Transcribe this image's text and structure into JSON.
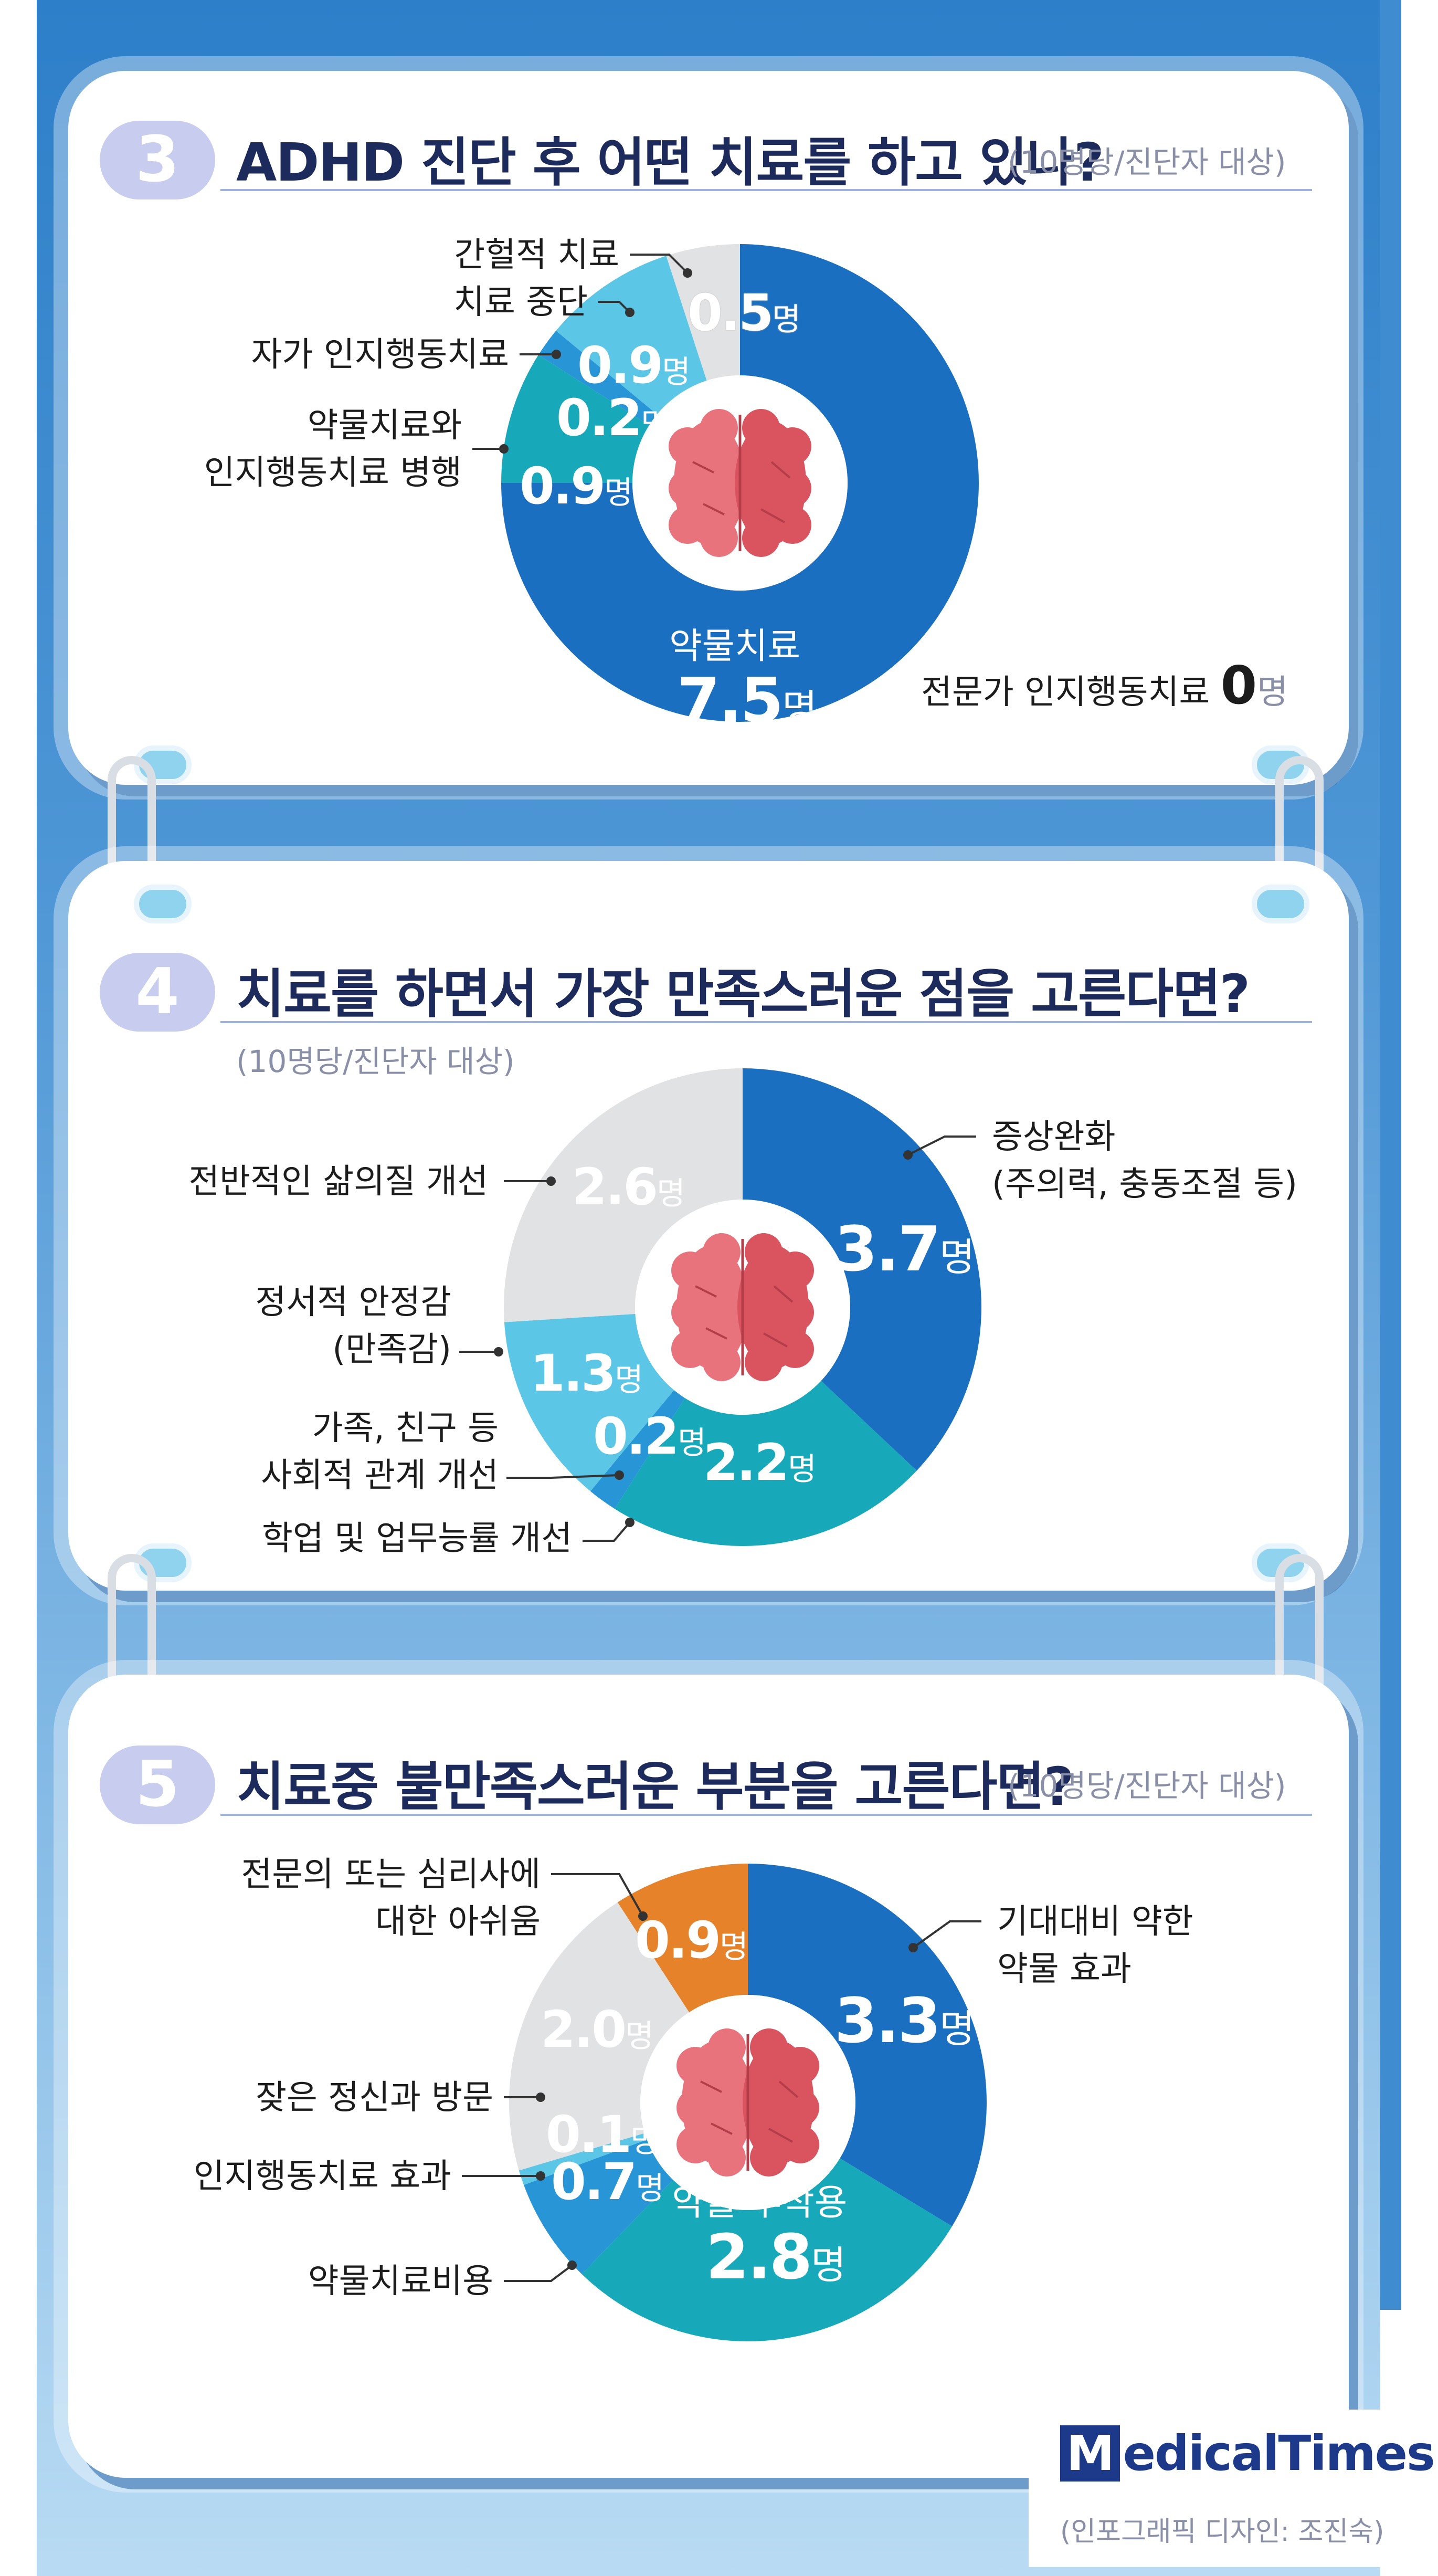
{
  "charts": [
    {
      "number": "3",
      "title": "ADHD 진단 후 어떤 치료를 하고 있나?",
      "subtitle": "(10명당/진단자 대상)",
      "extra_note": {
        "label": "전문가 인지행동치료",
        "value": "0",
        "unit": "명"
      }
    },
    {
      "number": "4",
      "title": "치료를 하면서 가장 만족스러운 점을 고른다면?",
      "subtitle": "(10명당/진단자 대상)"
    },
    {
      "number": "5",
      "title": "치료중 불만족스러운 부분을 고른다면?",
      "subtitle": "(10명당/진단자 대상)"
    }
  ],
  "chart_data": [
    {
      "type": "pie",
      "title": "ADHD 진단 후 어떤 치료를 하고 있나?",
      "unit": "명",
      "slices": [
        {
          "label": "약물치료",
          "value": 7.5,
          "color": "#1b6fc0"
        },
        {
          "label": "약물치료와 인지행동치료 병행",
          "value": 0.9,
          "color": "#17a8b9"
        },
        {
          "label": "자가 인지행동치료",
          "value": 0.2,
          "color": "#2795d6"
        },
        {
          "label": "치료 중단",
          "value": 0.9,
          "color": "#5cc6e6"
        },
        {
          "label": "간헐적 치료",
          "value": 0.5,
          "color": "#e1e2e4"
        }
      ]
    },
    {
      "type": "pie",
      "title": "치료를 하면서 가장 만족스러운 점을 고른다면?",
      "unit": "명",
      "slices": [
        {
          "label": "증상완화 (주의력, 충동조절 등)",
          "value": 3.7,
          "color": "#1b6fc0"
        },
        {
          "label": "학업 및 업무능률 개선",
          "value": 2.2,
          "color": "#17a8b9"
        },
        {
          "label": "가족, 친구 등 사회적 관계 개선",
          "value": 0.2,
          "color": "#2795d6"
        },
        {
          "label": "정서적 안정감 (만족감)",
          "value": 1.3,
          "color": "#5cc6e6"
        },
        {
          "label": "전반적인 삶의질 개선",
          "value": 2.6,
          "color": "#e1e2e4"
        }
      ]
    },
    {
      "type": "pie",
      "title": "치료중 불만족스러운 부분을 고른다면?",
      "unit": "명",
      "slices": [
        {
          "label": "기대대비 약한 약물 효과",
          "value": 3.3,
          "color": "#1b6fc0"
        },
        {
          "label": "약물 부작용",
          "value": 2.8,
          "color": "#17a8b9"
        },
        {
          "label": "약물치료비용",
          "value": 0.7,
          "color": "#2795d6"
        },
        {
          "label": "인지행동치료 효과",
          "value": 0.1,
          "color": "#5cc6e6"
        },
        {
          "label": "잦은 정신과 방문",
          "value": 2.0,
          "color": "#e1e2e4"
        },
        {
          "label": "전문의 또는 심리사에 대한 아쉬움",
          "value": 0.9,
          "color": "#e6822a"
        }
      ]
    }
  ],
  "labels": {
    "c1": {
      "s4_l1": "간헐적 치료",
      "s3_l1": "치료 중단",
      "s2_l1": "자가 인지행동치료",
      "s1_l1": "약물치료와",
      "s1_l2": "인지행동치료 병행",
      "s0_inner": "약물치료"
    },
    "c2": {
      "s0_l1": "증상완화",
      "s0_l2": "(주의력, 충동조절 등)",
      "s4_l1": "전반적인 삶의질 개선",
      "s3_l1": "정서적 안정감",
      "s3_l2": "(만족감)",
      "s2_l1": "가족, 친구 등",
      "s2_l2": "사회적 관계 개선",
      "s1_l1": "학업 및 업무능률 개선"
    },
    "c3": {
      "s5_l1": "전문의 또는 심리사에",
      "s5_l2": "대한 아쉬움",
      "s0_l1": "기대대비 약한",
      "s0_l2": "약물 효과",
      "s4_l1": "잦은 정신과 방문",
      "s3_l1": "인지행동치료 효과",
      "s2_l1": "약물치료비용",
      "s1_inner": "약물 부작용"
    }
  },
  "values_text": {
    "c1": {
      "s0": "7.5",
      "s1": "0.9",
      "s2": "0.2",
      "s3": "0.9",
      "s4": "0.5"
    },
    "c2": {
      "s0": "3.7",
      "s1": "2.2",
      "s2": "0.2",
      "s3": "1.3",
      "s4": "2.6"
    },
    "c3": {
      "s0": "3.3",
      "s1": "2.8",
      "s2": "0.7",
      "s3": "0.1",
      "s4": "2.0",
      "s5": "0.9"
    },
    "unit": "명"
  },
  "footer": {
    "logo_mark": "M",
    "logo_text": "edicalTimes",
    "credit": "(인포그래픽 디자인: 조진숙)"
  }
}
